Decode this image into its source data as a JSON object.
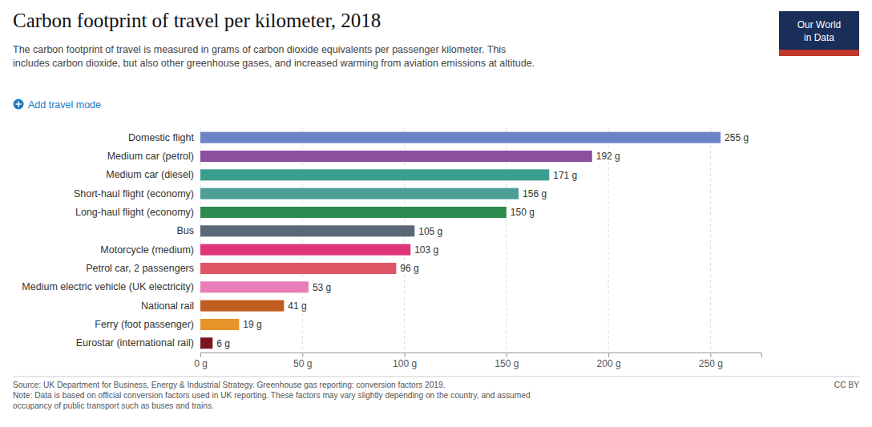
{
  "chart_data": {
    "type": "bar",
    "orientation": "horizontal",
    "title": "Carbon footprint of travel per kilometer, 2018",
    "subtitle": "The carbon footprint of travel is measured in grams of carbon dioxide equivalents per passenger kilometer. This\nincludes carbon dioxide, but also other greenhouse gases, and increased warming from aviation emissions at altitude.",
    "annotations": [
      "Add travel mode",
      "Our World\nin Data",
      "Source: UK Department for Business, Energy & Industrial Strategy. Greenhouse gas reporting: conversion factors 2019.\nNote: Data is based on official conversion factors used in UK reporting. These factors may vary slightly depending on the country, and assumed\noccupancy of public transport such as buses and trains.",
      "CC BY"
    ],
    "categories": [
      "Domestic flight",
      "Medium car (petrol)",
      "Medium car (diesel)",
      "Short-haul flight (economy)",
      "Long-haul flight (economy)",
      "Bus",
      "Motorcycle (medium)",
      "Petrol car, 2 passengers",
      "Medium electric vehicle (UK electricity)",
      "National rail",
      "Ferry (foot passenger)",
      "Eurostar (international rail)"
    ],
    "values": [
      255,
      192,
      171,
      156,
      150,
      105,
      103,
      96,
      53,
      41,
      19,
      6
    ],
    "value_labels": [
      "255 g",
      "192 g",
      "171 g",
      "156 g",
      "150 g",
      "105 g",
      "103 g",
      "96 g",
      "53 g",
      "41 g",
      "19 g",
      "6 g"
    ],
    "colors": [
      "#6d83c8",
      "#8b4fa0",
      "#3a9e8f",
      "#4d9e96",
      "#2e8b50",
      "#5a6878",
      "#e0337a",
      "#e05565",
      "#e87db8",
      "#c05c20",
      "#e8922a",
      "#7a1520"
    ],
    "xlim": [
      0,
      275
    ],
    "xticks": [
      {
        "value": 0,
        "label": "0 g"
      },
      {
        "value": 50,
        "label": "50 g"
      },
      {
        "value": 100,
        "label": "100 g"
      },
      {
        "value": 150,
        "label": "150 g"
      },
      {
        "value": 200,
        "label": "200 g"
      },
      {
        "value": 250,
        "label": "250 g"
      }
    ],
    "grid": true,
    "data_labels": true
  }
}
